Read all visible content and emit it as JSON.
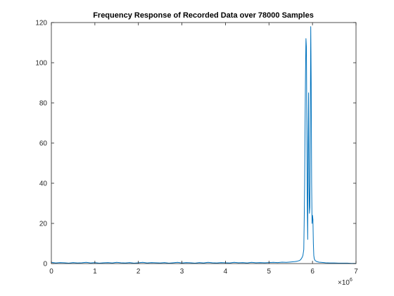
{
  "chart_data": {
    "type": "line",
    "title": "Frequency Response of Recorded Data over 78000 Samples",
    "xlabel": "",
    "ylabel": "",
    "xlim": [
      0,
      7000000
    ],
    "ylim": [
      0,
      120
    ],
    "x_ticks": [
      0,
      1000000,
      2000000,
      3000000,
      4000000,
      5000000,
      6000000,
      7000000
    ],
    "x_tick_labels": [
      "0",
      "1",
      "2",
      "3",
      "4",
      "5",
      "6",
      "7"
    ],
    "x_multiplier_base": "×10",
    "x_multiplier_exponent": "6",
    "y_ticks": [
      0,
      20,
      40,
      60,
      80,
      100,
      120
    ],
    "y_tick_labels": [
      "0",
      "20",
      "40",
      "60",
      "80",
      "100",
      "120"
    ],
    "grid": false,
    "legend": "none",
    "series": [
      {
        "color": "#0072BD",
        "x": [
          0,
          100000,
          200000,
          300000,
          400000,
          500000,
          600000,
          700000,
          800000,
          900000,
          1000000,
          1100000,
          1200000,
          1300000,
          1400000,
          1500000,
          1600000,
          1700000,
          1800000,
          1900000,
          2000000,
          2100000,
          2200000,
          2300000,
          2400000,
          2500000,
          2600000,
          2700000,
          2800000,
          2900000,
          3000000,
          3100000,
          3200000,
          3300000,
          3400000,
          3500000,
          3600000,
          3700000,
          3800000,
          3900000,
          4000000,
          4100000,
          4200000,
          4300000,
          4400000,
          4500000,
          4600000,
          4700000,
          4800000,
          4900000,
          5000000,
          5100000,
          5200000,
          5300000,
          5400000,
          5500000,
          5600000,
          5650000,
          5700000,
          5730000,
          5760000,
          5780000,
          5800000,
          5810000,
          5820000,
          5830000,
          5840000,
          5850000,
          5860000,
          5870000,
          5880000,
          5890000,
          5900000,
          5910000,
          5920000,
          5930000,
          5940000,
          5950000,
          5960000,
          5970000,
          5980000,
          5990000,
          6000000,
          6010000,
          6020000,
          6030000,
          6040000,
          6060000,
          6100000,
          6150000,
          6200000,
          6300000,
          6400000,
          6500000,
          6600000,
          6700000,
          6800000,
          6900000,
          7000000
        ],
        "y": [
          0.6,
          0.3,
          0.5,
          0.4,
          0.2,
          0.5,
          0.3,
          0.4,
          0.6,
          0.3,
          0.5,
          0.2,
          0.4,
          0.5,
          0.3,
          0.6,
          0.4,
          0.3,
          0.5,
          0.2,
          0.4,
          0.6,
          0.3,
          0.5,
          0.4,
          0.3,
          0.5,
          0.2,
          0.4,
          0.6,
          0.3,
          0.5,
          0.4,
          0.2,
          0.5,
          0.3,
          0.6,
          0.4,
          0.3,
          0.5,
          0.4,
          0.3,
          0.6,
          0.4,
          0.5,
          0.3,
          0.6,
          0.4,
          0.5,
          0.4,
          0.5,
          0.6,
          0.5,
          0.7,
          0.6,
          0.8,
          1.0,
          1.2,
          1.5,
          2.0,
          3.0,
          4.0,
          7.0,
          22.0,
          40.0,
          70.0,
          95.0,
          112.0,
          108.0,
          70.0,
          30.0,
          12.0,
          60.0,
          85.0,
          40.0,
          25.0,
          28.0,
          70.0,
          118.0,
          90.0,
          40.0,
          20.0,
          24.0,
          22.0,
          10.0,
          4.0,
          2.5,
          1.5,
          1.0,
          0.7,
          0.6,
          0.4,
          0.3,
          0.3,
          0.2,
          0.2,
          0.2,
          0.1,
          0.1
        ]
      }
    ]
  }
}
